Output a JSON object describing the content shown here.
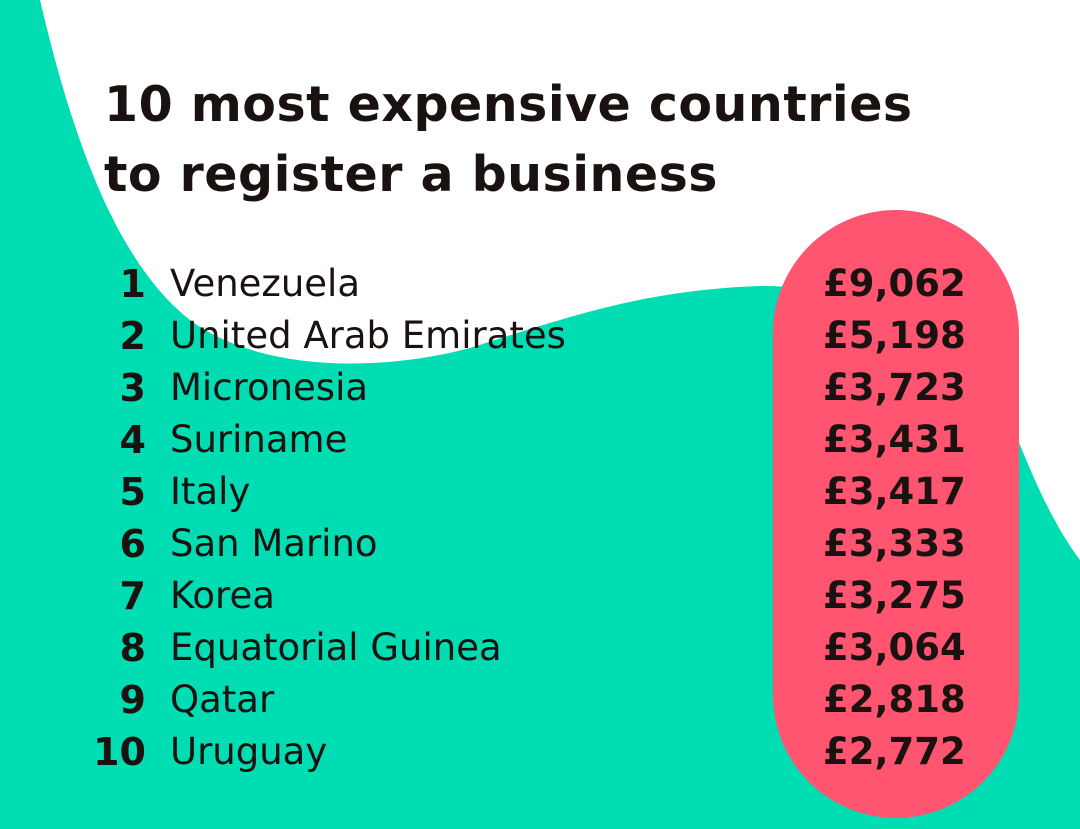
{
  "title_lines": [
    "10 most expensive countries",
    "to register a business"
  ],
  "colors": {
    "background": "#00DDB3",
    "highlight_pill": "#FF5570",
    "text": "#1a1210",
    "blob": "#FFFFFF"
  },
  "chart_data": {
    "type": "table",
    "title": "10 most expensive countries to register a business",
    "currency": "£",
    "rows": [
      {
        "rank": "1",
        "country": "Venezuela",
        "cost": "£9,062",
        "value": 9062
      },
      {
        "rank": "2",
        "country": "United Arab Emirates",
        "cost": "£5,198",
        "value": 5198
      },
      {
        "rank": "3",
        "country": "Micronesia",
        "cost": "£3,723",
        "value": 3723
      },
      {
        "rank": "4",
        "country": "Suriname",
        "cost": "£3,431",
        "value": 3431
      },
      {
        "rank": "5",
        "country": "Italy",
        "cost": "£3,417",
        "value": 3417
      },
      {
        "rank": "6",
        "country": "San Marino",
        "cost": "£3,333",
        "value": 3333
      },
      {
        "rank": "7",
        "country": "Korea",
        "cost": "£3,275",
        "value": 3275
      },
      {
        "rank": "8",
        "country": "Equatorial Guinea",
        "cost": "£3,064",
        "value": 3064
      },
      {
        "rank": "9",
        "country": "Qatar",
        "cost": "£2,818",
        "value": 2818
      },
      {
        "rank": "10",
        "country": "Uruguay",
        "cost": "£2,772",
        "value": 2772
      }
    ]
  }
}
